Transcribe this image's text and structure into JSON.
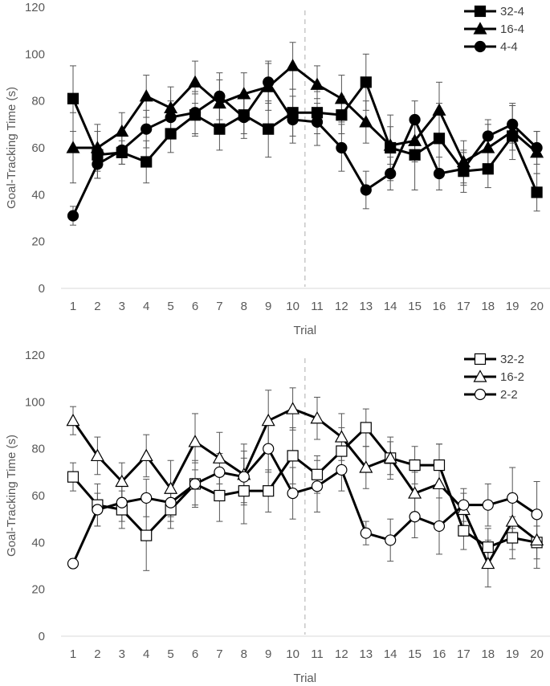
{
  "chart_data": [
    {
      "type": "line",
      "ylabel": "Goal-Tracking Time (s)",
      "xlabel": "Trial",
      "ylim": [
        0,
        120
      ],
      "y_ticks": [
        "0",
        "20",
        "40",
        "60",
        "80",
        "100",
        "120"
      ],
      "categories": [
        "1",
        "2",
        "3",
        "4",
        "5",
        "6",
        "7",
        "8",
        "9",
        "10",
        "11",
        "12",
        "13",
        "14",
        "15",
        "16",
        "17",
        "18",
        "19",
        "20"
      ],
      "reference_line_x": 10.5,
      "legend_position": "top-right",
      "series": [
        {
          "name": "32-4",
          "marker": "square",
          "fill": "#000000",
          "values": [
            81,
            57,
            58,
            54,
            66,
            74,
            68,
            74,
            68,
            75,
            75,
            74,
            88,
            60,
            57,
            64,
            50,
            51,
            65,
            41
          ],
          "errors": [
            14,
            10,
            5,
            9,
            8,
            9,
            9,
            8,
            12,
            10,
            9,
            8,
            12,
            14,
            15,
            15,
            9,
            8,
            6,
            8
          ]
        },
        {
          "name": "16-4",
          "marker": "triangle",
          "fill": "#000000",
          "values": [
            60,
            60,
            67,
            82,
            77,
            88,
            79,
            83,
            86,
            95,
            87,
            81,
            71,
            61,
            63,
            76,
            54,
            60,
            67,
            58
          ],
          "errors": [
            15,
            10,
            8,
            9,
            9,
            9,
            10,
            9,
            10,
            10,
            8,
            10,
            9,
            8,
            9,
            12,
            9,
            10,
            12,
            9
          ]
        },
        {
          "name": "4-4",
          "marker": "circle",
          "fill": "#000000",
          "values": [
            31,
            53,
            59,
            68,
            73,
            75,
            82,
            73,
            88,
            72,
            71,
            60,
            42,
            49,
            72,
            49,
            51,
            65,
            70,
            60
          ],
          "errors": [
            4,
            6,
            6,
            8,
            7,
            9,
            10,
            9,
            9,
            10,
            10,
            10,
            8,
            7,
            8,
            7,
            7,
            7,
            8,
            7
          ]
        }
      ]
    },
    {
      "type": "line",
      "ylabel": "Goal-Tracking Time (s)",
      "xlabel": "Trial",
      "ylim": [
        0,
        120
      ],
      "y_ticks": [
        "0",
        "20",
        "40",
        "60",
        "80",
        "100",
        "120"
      ],
      "categories": [
        "1",
        "2",
        "3",
        "4",
        "5",
        "6",
        "7",
        "8",
        "9",
        "10",
        "11",
        "12",
        "13",
        "14",
        "15",
        "16",
        "17",
        "18",
        "19",
        "20"
      ],
      "reference_line_x": 10.5,
      "legend_position": "top-right",
      "series": [
        {
          "name": "32-2",
          "marker": "square",
          "fill": "#ffffff",
          "values": [
            68,
            56,
            54,
            43,
            54,
            65,
            60,
            62,
            62,
            77,
            69,
            79,
            89,
            76,
            73,
            73,
            45,
            38,
            42,
            40
          ],
          "errors": [
            6,
            9,
            8,
            15,
            8,
            10,
            11,
            14,
            9,
            12,
            8,
            10,
            8,
            7,
            8,
            9,
            8,
            8,
            9,
            7
          ]
        },
        {
          "name": "16-2",
          "marker": "triangle",
          "fill": "#ffffff",
          "values": [
            92,
            77,
            66,
            77,
            63,
            83,
            76,
            69,
            92,
            97,
            93,
            85,
            72,
            76,
            61,
            65,
            54,
            31,
            49,
            41
          ],
          "errors": [
            6,
            8,
            8,
            9,
            12,
            12,
            11,
            13,
            13,
            9,
            9,
            10,
            9,
            9,
            9,
            17,
            7,
            10,
            12,
            12
          ]
        },
        {
          "name": "2-2",
          "marker": "circle",
          "fill": "#ffffff",
          "values": [
            31,
            54,
            57,
            59,
            57,
            65,
            70,
            68,
            80,
            61,
            64,
            71,
            44,
            41,
            51,
            47,
            56,
            56,
            59,
            52
          ],
          "errors": [
            2,
            7,
            8,
            8,
            8,
            9,
            8,
            11,
            10,
            11,
            11,
            9,
            5,
            9,
            9,
            12,
            7,
            9,
            13,
            14
          ]
        }
      ]
    }
  ]
}
